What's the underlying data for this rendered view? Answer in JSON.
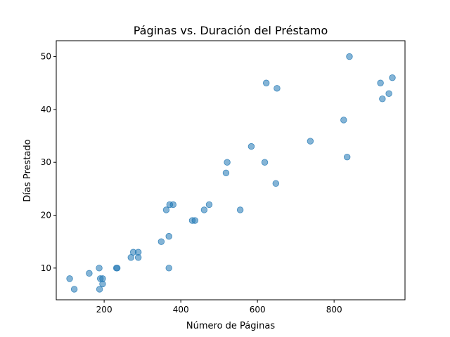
{
  "chart_data": {
    "type": "scatter",
    "title": "Páginas vs. Duración del Préstamo",
    "xlabel": "Número de Páginas",
    "ylabel": "Días Prestado",
    "xlim": [
      75,
      985
    ],
    "ylim": [
      4,
      53
    ],
    "xticks": [
      200,
      400,
      600,
      800
    ],
    "yticks": [
      10,
      20,
      30,
      40,
      50
    ],
    "grid": false,
    "marker_color": "#1f77b4",
    "marker_alpha": 0.55,
    "points": [
      {
        "x": 110,
        "y": 8
      },
      {
        "x": 122,
        "y": 6
      },
      {
        "x": 161,
        "y": 9
      },
      {
        "x": 187,
        "y": 10
      },
      {
        "x": 188,
        "y": 6
      },
      {
        "x": 190,
        "y": 8
      },
      {
        "x": 196,
        "y": 8
      },
      {
        "x": 196,
        "y": 7
      },
      {
        "x": 232,
        "y": 10
      },
      {
        "x": 234,
        "y": 10
      },
      {
        "x": 270,
        "y": 12
      },
      {
        "x": 276,
        "y": 13
      },
      {
        "x": 289,
        "y": 13
      },
      {
        "x": 289,
        "y": 12
      },
      {
        "x": 349,
        "y": 15
      },
      {
        "x": 362,
        "y": 21
      },
      {
        "x": 369,
        "y": 16
      },
      {
        "x": 369,
        "y": 10
      },
      {
        "x": 371,
        "y": 22
      },
      {
        "x": 380,
        "y": 22
      },
      {
        "x": 430,
        "y": 19
      },
      {
        "x": 437,
        "y": 19
      },
      {
        "x": 461,
        "y": 21
      },
      {
        "x": 474,
        "y": 22
      },
      {
        "x": 518,
        "y": 28
      },
      {
        "x": 521,
        "y": 30
      },
      {
        "x": 555,
        "y": 21
      },
      {
        "x": 584,
        "y": 33
      },
      {
        "x": 619,
        "y": 30
      },
      {
        "x": 623,
        "y": 45
      },
      {
        "x": 648,
        "y": 26
      },
      {
        "x": 651,
        "y": 44
      },
      {
        "x": 738,
        "y": 34
      },
      {
        "x": 825,
        "y": 38
      },
      {
        "x": 834,
        "y": 31
      },
      {
        "x": 840,
        "y": 50
      },
      {
        "x": 921,
        "y": 45
      },
      {
        "x": 926,
        "y": 42
      },
      {
        "x": 943,
        "y": 43
      },
      {
        "x": 952,
        "y": 46
      }
    ]
  }
}
